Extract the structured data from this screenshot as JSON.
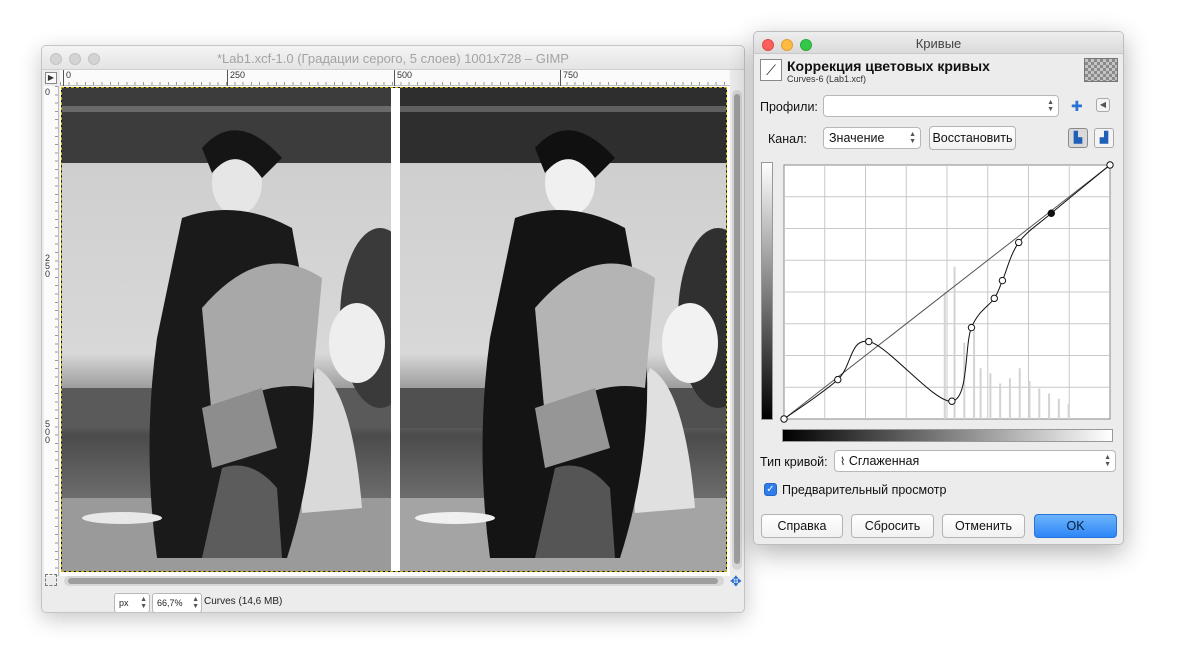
{
  "gimp_window": {
    "title": "*Lab1.xcf-1.0 (Градации серого, 5 слоев) 1001x728 – GIMP",
    "ruler_h_labels": [
      "0",
      "250",
      "500",
      "750"
    ],
    "ruler_v_labels": [
      "0",
      "250",
      "500"
    ],
    "status": {
      "unit": "px",
      "zoom": "66,7%",
      "message": "Curves (14,6 MB)"
    }
  },
  "curves_dialog": {
    "window_title": "Кривые",
    "header_title": "Коррекция цветовых кривых",
    "header_subtitle": "Curves-6 (Lab1.xcf)",
    "presets_label": "Профили:",
    "presets_value": "",
    "channel_label": "Канал:",
    "channel_value": "Значение",
    "reset_channel_button": "Восстановить",
    "curve_type_label": "Тип кривой:",
    "curve_type_value": "Сглаженная",
    "preview_label": "Предварительный просмотр",
    "preview_checked": true,
    "buttons": {
      "help": "Справка",
      "reset": "Сбросить",
      "cancel": "Отменить",
      "ok": "OK"
    },
    "curve_points": [
      [
        0,
        0
      ],
      [
        0.165,
        0.155
      ],
      [
        0.26,
        0.305
      ],
      [
        0.515,
        0.07
      ],
      [
        0.575,
        0.36
      ],
      [
        0.645,
        0.475
      ],
      [
        0.67,
        0.545
      ],
      [
        0.72,
        0.695
      ],
      [
        0.82,
        0.81
      ],
      [
        1,
        1
      ]
    ],
    "selected_point_index": 8,
    "accent_color": "#2d86f7",
    "close_color": "#fc605c",
    "minimize_color": "#fdbc40",
    "maximize_color": "#34c84a"
  }
}
